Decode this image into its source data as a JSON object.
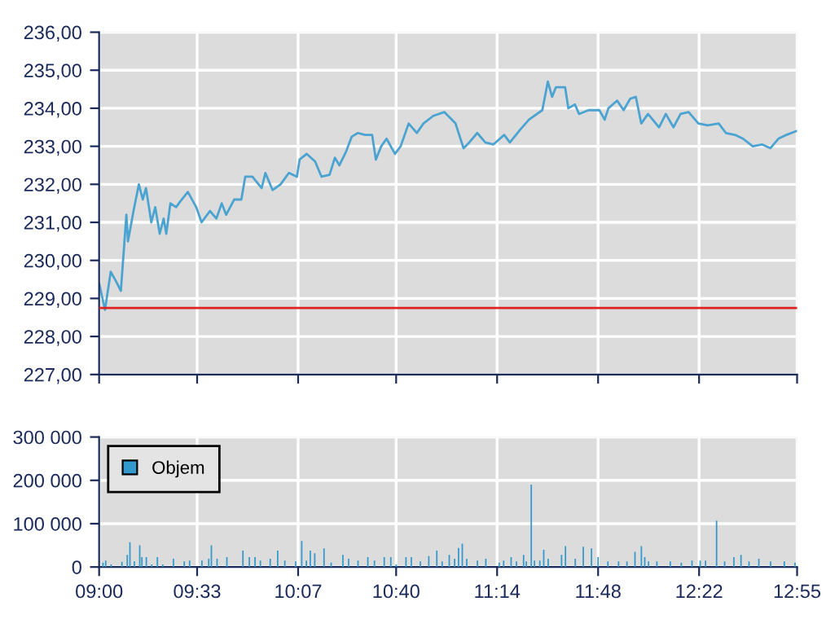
{
  "chart_data": [
    {
      "type": "line",
      "tick_labels": "y",
      "grid": true,
      "legend": false,
      "xlim": [
        9,
        12.9167
      ],
      "xticks": [
        {
          "value": 9,
          "label": null
        },
        {
          "value": 9.55,
          "label": null
        },
        {
          "value": 10.1167,
          "label": null
        },
        {
          "value": 10.6667,
          "label": null
        },
        {
          "value": 11.2333,
          "label": null
        },
        {
          "value": 11.8,
          "label": null
        },
        {
          "value": 12.3667,
          "label": null
        },
        {
          "value": 12.9167,
          "label": null
        }
      ],
      "ylim": [
        227,
        236
      ],
      "yticks": [
        {
          "value": 227,
          "label": "227,00"
        },
        {
          "value": 228,
          "label": "228,00"
        },
        {
          "value": 229,
          "label": "229,00"
        },
        {
          "value": 230,
          "label": "230,00"
        },
        {
          "value": 231,
          "label": "231,00"
        },
        {
          "value": 232,
          "label": "232,00"
        },
        {
          "value": 233,
          "label": "233,00"
        },
        {
          "value": 234,
          "label": "234,00"
        },
        {
          "value": 235,
          "label": "235,00"
        },
        {
          "value": 236,
          "label": "236,00"
        }
      ],
      "ref_lines": [
        {
          "axis": "y",
          "value": 228.75,
          "color": "#dd2222"
        }
      ],
      "series": [
        {
          "color": "#4aa3d0",
          "x": [
            9.0,
            9.033,
            9.065,
            9.095,
            9.122,
            9.153,
            9.162,
            9.193,
            9.223,
            9.245,
            9.263,
            9.293,
            9.315,
            9.34,
            9.362,
            9.377,
            9.4,
            9.432,
            9.455,
            9.498,
            9.545,
            9.575,
            9.622,
            9.658,
            9.688,
            9.713,
            9.758,
            9.798,
            9.82,
            9.86,
            9.912,
            9.933,
            9.973,
            10.018,
            10.065,
            10.11,
            10.125,
            10.165,
            10.212,
            10.248,
            10.293,
            10.323,
            10.348,
            10.385,
            10.417,
            10.452,
            10.492,
            10.532,
            10.553,
            10.583,
            10.613,
            10.66,
            10.692,
            10.737,
            10.783,
            10.82,
            10.875,
            10.937,
            11.0,
            11.045,
            11.077,
            11.122,
            11.167,
            11.213,
            11.273,
            11.305,
            11.365,
            11.412,
            11.487,
            11.518,
            11.542,
            11.563,
            11.615,
            11.633,
            11.67,
            11.693,
            11.747,
            11.807,
            11.837,
            11.858,
            11.907,
            11.943,
            11.98,
            12.012,
            12.042,
            12.08,
            12.142,
            12.18,
            12.223,
            12.263,
            12.308,
            12.363,
            12.415,
            12.477,
            12.517,
            12.568,
            12.613,
            12.668,
            12.72,
            12.767,
            12.812,
            12.857,
            12.912
          ],
          "values": [
            229.4,
            228.7,
            229.7,
            229.45,
            229.2,
            231.2,
            230.5,
            231.3,
            232.0,
            231.6,
            231.9,
            231.0,
            231.4,
            230.7,
            231.1,
            230.7,
            231.5,
            231.4,
            231.55,
            231.8,
            231.4,
            231.0,
            231.3,
            231.1,
            231.5,
            231.2,
            231.6,
            231.6,
            232.2,
            232.2,
            231.9,
            232.3,
            231.85,
            232.0,
            232.3,
            232.2,
            232.65,
            232.8,
            232.6,
            232.2,
            232.25,
            232.7,
            232.5,
            232.85,
            233.25,
            233.35,
            233.3,
            233.3,
            232.65,
            233.0,
            233.2,
            232.8,
            233.0,
            233.6,
            233.35,
            233.6,
            233.8,
            233.9,
            233.6,
            232.95,
            233.1,
            233.35,
            233.1,
            233.05,
            233.3,
            233.1,
            233.45,
            233.7,
            233.95,
            234.7,
            234.3,
            234.55,
            234.55,
            234.0,
            234.1,
            233.85,
            233.95,
            233.95,
            233.7,
            234.0,
            234.2,
            233.95,
            234.25,
            234.3,
            233.6,
            233.85,
            233.5,
            233.85,
            233.5,
            233.85,
            233.9,
            233.6,
            233.55,
            233.6,
            233.35,
            233.3,
            233.2,
            233.0,
            233.05,
            232.95,
            233.2,
            233.3,
            233.4
          ]
        }
      ]
    },
    {
      "type": "bar",
      "grid": true,
      "legend": "top left",
      "xlim": [
        9,
        12.9167
      ],
      "xticks": [
        {
          "value": 9,
          "label": "09:00"
        },
        {
          "value": 9.55,
          "label": "09:33"
        },
        {
          "value": 10.1167,
          "label": "10:07"
        },
        {
          "value": 10.6667,
          "label": "10:40"
        },
        {
          "value": 11.2333,
          "label": "11:14"
        },
        {
          "value": 11.8,
          "label": "11:48"
        },
        {
          "value": 12.3667,
          "label": "12:22"
        },
        {
          "value": 12.9167,
          "label": "12:55"
        }
      ],
      "ylim": [
        0,
        300000
      ],
      "yticks": [
        {
          "value": 0,
          "label": "0"
        },
        {
          "value": 100000,
          "label": "100 000"
        },
        {
          "value": 200000,
          "label": "200 000"
        },
        {
          "value": 300000,
          "label": "300 000"
        }
      ],
      "series": [
        {
          "name": "Objem",
          "color": "#3399cc",
          "x": [
            9.022,
            9.037,
            9.067,
            9.128,
            9.158,
            9.173,
            9.198,
            9.228,
            9.24,
            9.265,
            9.295,
            9.327,
            9.357,
            9.417,
            9.478,
            9.508,
            9.577,
            9.615,
            9.63,
            9.662,
            9.717,
            9.807,
            9.843,
            9.875,
            9.905,
            9.96,
            10.002,
            10.042,
            10.103,
            10.137,
            10.163,
            10.185,
            10.21,
            10.262,
            10.302,
            10.368,
            10.4,
            10.453,
            10.508,
            10.545,
            10.6,
            10.637,
            10.667,
            10.722,
            10.752,
            10.803,
            10.85,
            10.895,
            10.925,
            10.965,
            10.995,
            11.017,
            11.038,
            11.063,
            11.123,
            11.17,
            11.245,
            11.27,
            11.312,
            11.342,
            11.382,
            11.397,
            11.425,
            11.443,
            11.473,
            11.495,
            11.52,
            11.595,
            11.617,
            11.672,
            11.717,
            11.763,
            11.8,
            11.855,
            11.915,
            11.962,
            12.007,
            12.043,
            12.062,
            12.083,
            12.13,
            12.205,
            12.267,
            12.327,
            12.373,
            12.403,
            12.465,
            12.51,
            12.562,
            12.602,
            12.647,
            12.702,
            12.768,
            12.845,
            12.905
          ],
          "values": [
            10000,
            15000,
            6000,
            12000,
            28000,
            57000,
            13000,
            50000,
            23000,
            23000,
            6000,
            23000,
            6000,
            19000,
            13000,
            15000,
            15000,
            19000,
            50000,
            19000,
            23000,
            38000,
            23000,
            23000,
            15000,
            19000,
            38000,
            15000,
            13000,
            60000,
            15000,
            38000,
            32000,
            43000,
            10000,
            28000,
            19000,
            15000,
            23000,
            15000,
            23000,
            23000,
            6000,
            23000,
            23000,
            13000,
            25000,
            38000,
            13000,
            28000,
            19000,
            44000,
            54000,
            19000,
            15000,
            19000,
            10000,
            15000,
            23000,
            13000,
            28000,
            13000,
            190000,
            15000,
            15000,
            40000,
            19000,
            28000,
            48000,
            19000,
            47000,
            43000,
            23000,
            13000,
            13000,
            13000,
            35000,
            48000,
            23000,
            13000,
            13000,
            13000,
            10000,
            15000,
            15000,
            15000,
            107000,
            13000,
            23000,
            28000,
            13000,
            19000,
            13000,
            13000,
            10000
          ]
        }
      ]
    }
  ]
}
